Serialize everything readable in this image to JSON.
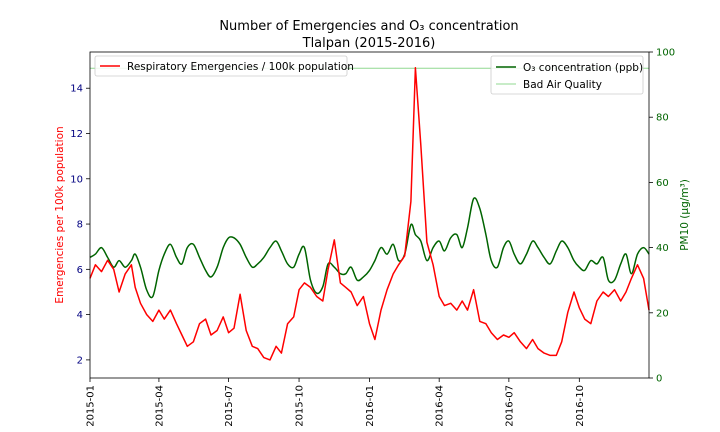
{
  "chart_data": {
    "type": "line",
    "title": "Number of Emergencies and O₃ concentration",
    "subtitle": "Tlalpan (2015-2016)",
    "left_axis": {
      "label": "Emergencies per 100k population",
      "color": "#ff0000",
      "tick_color": "#000080",
      "range": [
        1.2,
        15.6
      ],
      "ticks": [
        2,
        4,
        6,
        8,
        10,
        12,
        14
      ]
    },
    "right_axis": {
      "label": "PM10 (μg/m³)",
      "color": "#006400",
      "range": [
        0,
        100
      ],
      "ticks": [
        0,
        20,
        40,
        60,
        80,
        100
      ]
    },
    "x_axis": {
      "range": [
        "2015-01-01",
        "2016-12-31"
      ],
      "tick_labels": [
        "2015-01",
        "2015-04",
        "2015-07",
        "2015-10",
        "2016-01",
        "2016-04",
        "2016-07",
        "2016-10"
      ],
      "tick_dates": [
        "2015-01-01",
        "2015-04-01",
        "2015-07-01",
        "2015-10-01",
        "2016-01-01",
        "2016-04-01",
        "2016-07-01",
        "2016-10-01"
      ]
    },
    "series": [
      {
        "name": "Respiratory Emergencies / 100k population",
        "axis": "left",
        "color": "#ff0000",
        "x": [
          "2015-01-01",
          "2015-01-08",
          "2015-01-16",
          "2015-01-24",
          "2015-02-01",
          "2015-02-08",
          "2015-02-16",
          "2015-02-24",
          "2015-03-01",
          "2015-03-08",
          "2015-03-16",
          "2015-03-24",
          "2015-04-01",
          "2015-04-08",
          "2015-04-16",
          "2015-04-24",
          "2015-05-01",
          "2015-05-08",
          "2015-05-16",
          "2015-05-24",
          "2015-06-01",
          "2015-06-08",
          "2015-06-16",
          "2015-06-24",
          "2015-07-01",
          "2015-07-08",
          "2015-07-16",
          "2015-07-24",
          "2015-08-01",
          "2015-08-08",
          "2015-08-16",
          "2015-08-24",
          "2015-09-01",
          "2015-09-08",
          "2015-09-16",
          "2015-09-24",
          "2015-10-01",
          "2015-10-08",
          "2015-10-16",
          "2015-10-24",
          "2015-11-01",
          "2015-11-08",
          "2015-11-16",
          "2015-11-24",
          "2015-12-01",
          "2015-12-08",
          "2015-12-16",
          "2015-12-24",
          "2016-01-01",
          "2016-01-08",
          "2016-01-16",
          "2016-01-24",
          "2016-02-01",
          "2016-02-08",
          "2016-02-16",
          "2016-02-24",
          "2016-03-01",
          "2016-03-08",
          "2016-03-16",
          "2016-03-24",
          "2016-04-01",
          "2016-04-08",
          "2016-04-16",
          "2016-04-24",
          "2016-05-01",
          "2016-05-08",
          "2016-05-16",
          "2016-05-24",
          "2016-06-01",
          "2016-06-08",
          "2016-06-16",
          "2016-06-24",
          "2016-07-01",
          "2016-07-08",
          "2016-07-16",
          "2016-07-24",
          "2016-08-01",
          "2016-08-08",
          "2016-08-16",
          "2016-08-24",
          "2016-09-01",
          "2016-09-08",
          "2016-09-16",
          "2016-09-24",
          "2016-10-01",
          "2016-10-08",
          "2016-10-16",
          "2016-10-24",
          "2016-11-01",
          "2016-11-08",
          "2016-11-16",
          "2016-11-24",
          "2016-12-01",
          "2016-12-08",
          "2016-12-16",
          "2016-12-24",
          "2016-12-31"
        ],
        "y": [
          5.6,
          6.2,
          5.9,
          6.4,
          6.0,
          5.0,
          5.8,
          6.2,
          5.2,
          4.5,
          4.0,
          3.7,
          4.2,
          3.8,
          4.2,
          3.6,
          3.1,
          2.6,
          2.8,
          3.6,
          3.8,
          3.1,
          3.3,
          3.9,
          3.2,
          3.4,
          4.9,
          3.3,
          2.6,
          2.5,
          2.1,
          2.0,
          2.6,
          2.3,
          3.6,
          3.9,
          5.1,
          5.4,
          5.2,
          4.8,
          4.6,
          6.0,
          7.3,
          5.4,
          5.2,
          5.0,
          4.4,
          4.8,
          3.6,
          2.9,
          4.2,
          5.1,
          5.8,
          6.2,
          6.6,
          9.0,
          14.9,
          11.5,
          7.2,
          6.2,
          4.8,
          4.4,
          4.5,
          4.2,
          4.6,
          4.2,
          5.1,
          3.7,
          3.6,
          3.2,
          2.9,
          3.1,
          3.0,
          3.2,
          2.8,
          2.5,
          2.9,
          2.5,
          2.3,
          2.2,
          2.2,
          2.8,
          4.1,
          5.0,
          4.3,
          3.8,
          3.6,
          4.6,
          5.0,
          4.8,
          5.1,
          4.6,
          5.0,
          5.6,
          6.2,
          5.6,
          4.2
        ]
      },
      {
        "name": "O₃ concentration (ppb)",
        "axis": "right",
        "color": "#006400",
        "x": [
          "2015-01-01",
          "2015-01-08",
          "2015-01-16",
          "2015-01-24",
          "2015-02-01",
          "2015-02-08",
          "2015-02-16",
          "2015-02-24",
          "2015-03-01",
          "2015-03-08",
          "2015-03-16",
          "2015-03-24",
          "2015-04-01",
          "2015-04-08",
          "2015-04-16",
          "2015-04-24",
          "2015-05-01",
          "2015-05-08",
          "2015-05-16",
          "2015-05-24",
          "2015-06-01",
          "2015-06-08",
          "2015-06-16",
          "2015-06-24",
          "2015-07-01",
          "2015-07-08",
          "2015-07-16",
          "2015-07-24",
          "2015-08-01",
          "2015-08-08",
          "2015-08-16",
          "2015-08-24",
          "2015-09-01",
          "2015-09-08",
          "2015-09-16",
          "2015-09-24",
          "2015-10-01",
          "2015-10-08",
          "2015-10-16",
          "2015-10-24",
          "2015-11-01",
          "2015-11-08",
          "2015-11-16",
          "2015-11-24",
          "2015-12-01",
          "2015-12-08",
          "2015-12-16",
          "2015-12-24",
          "2016-01-01",
          "2016-01-08",
          "2016-01-16",
          "2016-01-24",
          "2016-02-01",
          "2016-02-08",
          "2016-02-16",
          "2016-02-24",
          "2016-03-01",
          "2016-03-08",
          "2016-03-16",
          "2016-03-24",
          "2016-04-01",
          "2016-04-08",
          "2016-04-16",
          "2016-04-24",
          "2016-05-01",
          "2016-05-08",
          "2016-05-16",
          "2016-05-24",
          "2016-06-01",
          "2016-06-08",
          "2016-06-16",
          "2016-06-24",
          "2016-07-01",
          "2016-07-08",
          "2016-07-16",
          "2016-07-24",
          "2016-08-01",
          "2016-08-08",
          "2016-08-16",
          "2016-08-24",
          "2016-09-01",
          "2016-09-08",
          "2016-09-16",
          "2016-09-24",
          "2016-10-01",
          "2016-10-08",
          "2016-10-16",
          "2016-10-24",
          "2016-11-01",
          "2016-11-08",
          "2016-11-16",
          "2016-11-24",
          "2016-12-01",
          "2016-12-08",
          "2016-12-16",
          "2016-12-24",
          "2016-12-31"
        ],
        "y": [
          37,
          38,
          40,
          37,
          34,
          36,
          34,
          36,
          38,
          34,
          27,
          25,
          33,
          38,
          41,
          37,
          35,
          40,
          41,
          37,
          33,
          31,
          34,
          40,
          43,
          43,
          41,
          37,
          34,
          35,
          37,
          40,
          42,
          39,
          35,
          34,
          38,
          40,
          30,
          26,
          28,
          35,
          34,
          32,
          32,
          34,
          30,
          31,
          33,
          36,
          40,
          38,
          41,
          36,
          38,
          47,
          44,
          42,
          36,
          40,
          42,
          39,
          43,
          44,
          40,
          46,
          55,
          52,
          44,
          36,
          34,
          40,
          42,
          38,
          35,
          38,
          42,
          40,
          37,
          35,
          39,
          42,
          40,
          36,
          34,
          33,
          36,
          35,
          37,
          30,
          30,
          35,
          38,
          32,
          38,
          40,
          38
        ]
      },
      {
        "name": "Bad Air Quality",
        "axis": "right",
        "color": "#90d890",
        "type": "hline",
        "value": 95
      }
    ],
    "legends": [
      {
        "placement": "top-left",
        "entries": [
          "Respiratory Emergencies / 100k population"
        ]
      },
      {
        "placement": "top-right",
        "entries": [
          "O₃ concentration (ppb)",
          "Bad Air Quality"
        ]
      }
    ],
    "grid": false
  }
}
